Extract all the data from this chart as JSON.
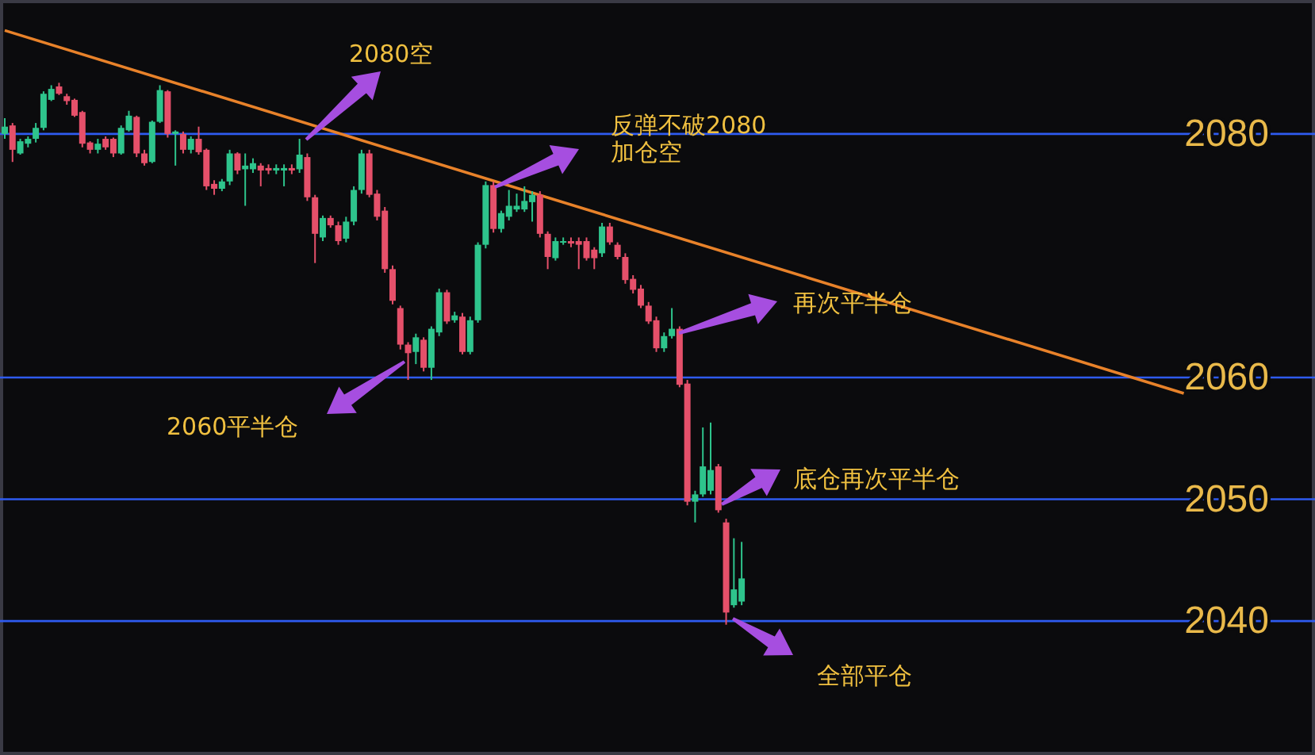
{
  "chart_data": {
    "type": "candlestick",
    "categories": [
      null,
      null,
      null,
      null,
      null,
      null,
      null,
      null,
      null,
      null,
      null,
      null,
      null,
      null,
      null,
      null,
      null,
      null,
      null,
      null,
      null,
      null,
      null,
      null,
      null,
      null,
      null,
      null,
      null,
      null,
      null,
      null,
      null,
      null,
      null,
      null,
      null,
      null,
      null,
      null,
      null,
      null,
      null,
      null,
      null,
      null,
      null,
      null,
      null,
      null,
      null,
      null,
      null,
      null,
      null,
      null,
      null,
      null,
      null,
      null,
      null,
      null,
      null,
      null,
      null,
      null,
      null,
      null,
      null,
      null,
      null,
      null,
      null,
      null,
      null,
      null,
      null,
      null,
      null,
      null,
      null,
      null,
      null,
      null,
      null,
      null,
      null,
      null,
      null,
      null,
      null,
      null,
      null,
      null,
      null,
      null,
      null,
      null,
      null,
      null,
      null,
      null,
      null,
      null,
      null,
      null,
      null,
      null,
      null,
      null,
      null,
      null,
      null,
      null,
      null,
      null,
      null,
      null,
      null,
      null,
      null,
      null,
      null,
      null,
      null,
      null,
      null,
      null,
      null,
      null,
      null,
      null,
      null,
      null,
      null,
      null,
      null,
      null,
      null,
      null,
      null,
      null,
      null,
      null,
      null,
      null,
      null,
      null,
      null,
      null,
      null,
      null,
      null
    ],
    "ohlc": [
      [
        2080.0,
        2081.3,
        2079.6,
        2080.6
      ],
      [
        2080.7,
        2080.9,
        2077.7,
        2078.7
      ],
      [
        2078.4,
        2079.6,
        2078.3,
        2079.4
      ],
      [
        2079.2,
        2079.8,
        2078.9,
        2079.6
      ],
      [
        2079.6,
        2080.9,
        2079.3,
        2080.5
      ],
      [
        2080.5,
        2083.5,
        2080.3,
        2083.3
      ],
      [
        2082.8,
        2084.0,
        2082.7,
        2083.7
      ],
      [
        2083.9,
        2084.2,
        2083.2,
        2083.3
      ],
      [
        2083.1,
        2083.3,
        2082.4,
        2082.7
      ],
      [
        2082.8,
        2082.9,
        2081.4,
        2081.5
      ],
      [
        2081.8,
        2081.9,
        2078.9,
        2079.2
      ],
      [
        2079.3,
        2079.4,
        2078.4,
        2078.7
      ],
      [
        2078.7,
        2079.6,
        2078.4,
        2079.2
      ],
      [
        2079.6,
        2079.8,
        2078.7,
        2078.9
      ],
      [
        2079.6,
        2079.7,
        2078.1,
        2078.4
      ],
      [
        2078.4,
        2080.7,
        2078.3,
        2080.5
      ],
      [
        2080.3,
        2081.9,
        2080.2,
        2081.5
      ],
      [
        2081.4,
        2081.5,
        2078.1,
        2078.4
      ],
      [
        2078.4,
        2078.7,
        2077.4,
        2077.6
      ],
      [
        2077.7,
        2081.1,
        2077.6,
        2081.0
      ],
      [
        2081.0,
        2084.0,
        2080.9,
        2083.6
      ],
      [
        2083.5,
        2083.6,
        2079.7,
        2080.0
      ],
      [
        2080.0,
        2080.3,
        2077.4,
        2080.2
      ],
      [
        2080.0,
        2080.2,
        2078.4,
        2078.7
      ],
      [
        2078.7,
        2079.8,
        2078.4,
        2079.6
      ],
      [
        2079.6,
        2080.6,
        2078.3,
        2078.5
      ],
      [
        2078.7,
        2078.8,
        2075.4,
        2075.7
      ],
      [
        2075.9,
        2076.2,
        2075.0,
        2075.5
      ],
      [
        2075.5,
        2076.3,
        2075.3,
        2076.1
      ],
      [
        2076.1,
        2078.7,
        2075.8,
        2078.4
      ],
      [
        2078.4,
        2078.5,
        2076.7,
        2077.0
      ],
      [
        2077.1,
        2078.4,
        2074.1,
        2077.4
      ],
      [
        2077.1,
        2078.0,
        2076.8,
        2077.6
      ],
      [
        2077.4,
        2077.6,
        2075.7,
        2077.0
      ],
      [
        2077.2,
        2077.5,
        2076.7,
        2077.0
      ],
      [
        2077.0,
        2077.5,
        2076.7,
        2077.2
      ],
      [
        2077.0,
        2077.5,
        2075.7,
        2077.2
      ],
      [
        2077.2,
        2077.5,
        2076.7,
        2077.0
      ],
      [
        2077.1,
        2079.6,
        2076.8,
        2078.3
      ],
      [
        2078.1,
        2078.4,
        2074.5,
        2074.8
      ],
      [
        2074.8,
        2075.0,
        2069.4,
        2071.8
      ],
      [
        2071.5,
        2073.3,
        2071.2,
        2073.1
      ],
      [
        2073.1,
        2073.3,
        2072.3,
        2072.5
      ],
      [
        2072.5,
        2072.8,
        2070.9,
        2071.2
      ],
      [
        2071.4,
        2073.2,
        2071.1,
        2072.8
      ],
      [
        2072.8,
        2075.7,
        2072.5,
        2075.4
      ],
      [
        2075.4,
        2078.7,
        2075.1,
        2078.4
      ],
      [
        2078.4,
        2078.7,
        2074.8,
        2075.0
      ],
      [
        2075.1,
        2075.4,
        2072.9,
        2073.2
      ],
      [
        2073.7,
        2074.0,
        2068.6,
        2068.9
      ],
      [
        2068.9,
        2069.2,
        2066.0,
        2066.3
      ],
      [
        2065.7,
        2065.9,
        2062.3,
        2062.7
      ],
      [
        2062.7,
        2062.9,
        2059.8,
        2062.0
      ],
      [
        2062.1,
        2063.6,
        2061.1,
        2063.3
      ],
      [
        2063.1,
        2063.3,
        2060.5,
        2060.8
      ],
      [
        2060.8,
        2064.2,
        2059.8,
        2064.0
      ],
      [
        2063.7,
        2067.3,
        2063.4,
        2067.0
      ],
      [
        2067.0,
        2067.2,
        2064.4,
        2064.6
      ],
      [
        2064.7,
        2065.4,
        2064.5,
        2065.1
      ],
      [
        2065.0,
        2065.3,
        2061.9,
        2062.1
      ],
      [
        2062.1,
        2065.0,
        2061.9,
        2064.7
      ],
      [
        2064.7,
        2071.1,
        2064.5,
        2070.9
      ],
      [
        2070.9,
        2076.1,
        2070.6,
        2075.8
      ],
      [
        2075.8,
        2076.1,
        2071.9,
        2072.2
      ],
      [
        2072.2,
        2073.7,
        2071.9,
        2073.5
      ],
      [
        2073.2,
        2075.4,
        2072.9,
        2074.1
      ],
      [
        2073.8,
        2075.1,
        2073.6,
        2074.1
      ],
      [
        2073.8,
        2075.7,
        2073.6,
        2074.5
      ],
      [
        2074.4,
        2075.3,
        2072.8,
        2075.0
      ],
      [
        2075.0,
        2075.3,
        2071.5,
        2071.8
      ],
      [
        2071.8,
        2072.0,
        2068.9,
        2069.9
      ],
      [
        2069.8,
        2071.5,
        2069.6,
        2071.2
      ],
      [
        2071.1,
        2071.5,
        2070.9,
        2071.2
      ],
      [
        2071.2,
        2071.5,
        2070.7,
        2071.0
      ],
      [
        2071.2,
        2071.5,
        2068.9,
        2070.9
      ],
      [
        2071.2,
        2071.5,
        2069.6,
        2069.8
      ],
      [
        2070.5,
        2070.7,
        2068.9,
        2069.8
      ],
      [
        2070.2,
        2072.7,
        2069.9,
        2072.4
      ],
      [
        2072.4,
        2072.7,
        2070.9,
        2071.1
      ],
      [
        2070.9,
        2071.1,
        2069.7,
        2069.9
      ],
      [
        2069.9,
        2070.2,
        2067.7,
        2068.0
      ],
      [
        2068.1,
        2068.4,
        2066.9,
        2067.2
      ],
      [
        2067.3,
        2067.6,
        2065.7,
        2065.9
      ],
      [
        2065.9,
        2066.2,
        2064.4,
        2064.6
      ],
      [
        2064.7,
        2065.0,
        2062.1,
        2062.4
      ],
      [
        2062.4,
        2063.7,
        2062.1,
        2063.4
      ],
      [
        2063.4,
        2065.7,
        2063.2,
        2064.0
      ],
      [
        2064.0,
        2064.2,
        2059.2,
        2059.4
      ],
      [
        2059.5,
        2059.8,
        2049.5,
        2049.8
      ],
      [
        2049.8,
        2050.7,
        2048.1,
        2050.4
      ],
      [
        2050.4,
        2055.9,
        2050.2,
        2052.7
      ],
      [
        2050.7,
        2056.3,
        2050.4,
        2052.4
      ],
      [
        2052.7,
        2052.9,
        2048.9,
        2049.1
      ],
      [
        2048.1,
        2048.4,
        2039.7,
        2040.7
      ],
      [
        2041.3,
        2046.8,
        2041.1,
        2042.6
      ],
      [
        2041.6,
        2046.5,
        2041.3,
        2043.5
      ],
      null,
      null,
      null,
      null,
      null,
      null,
      null,
      null,
      null,
      null,
      null,
      null,
      null,
      null,
      null,
      null,
      null,
      null,
      null,
      null,
      null,
      null,
      null,
      null,
      null,
      null,
      null,
      null,
      null,
      null,
      null,
      null,
      null,
      null,
      null,
      null,
      null,
      null,
      null,
      null,
      null,
      null,
      null,
      null,
      null,
      null,
      null,
      null,
      null,
      null,
      null,
      null,
      null,
      null,
      null,
      null,
      null
    ],
    "colors": [
      "#2ec48c",
      "#e5506a",
      "#2ec48c",
      "#2ec48c",
      "#2ec48c",
      "#2ec48c",
      "#2ec48c",
      "#e5506a",
      "#e5506a",
      "#e5506a",
      "#e5506a",
      "#e5506a",
      "#2ec48c",
      "#e5506a",
      "#e5506a",
      "#2ec48c",
      "#2ec48c",
      "#e5506a",
      "#e5506a",
      "#2ec48c",
      "#2ec48c",
      "#e5506a",
      "#2ec48c",
      "#e5506a",
      "#2ec48c",
      "#e5506a",
      "#e5506a",
      "#e5506a",
      "#2ec48c",
      "#2ec48c",
      "#e5506a",
      "#2ec48c",
      "#2ec48c",
      "#e5506a",
      "#e5506a",
      "#2ec48c",
      "#2ec48c",
      "#e5506a",
      "#2ec48c",
      "#e5506a",
      "#e5506a",
      "#2ec48c",
      "#e5506a",
      "#e5506a",
      "#2ec48c",
      "#2ec48c",
      "#2ec48c",
      "#e5506a",
      "#e5506a",
      "#e5506a",
      "#e5506a",
      "#e5506a",
      "#e5506a",
      "#2ec48c",
      "#e5506a",
      "#2ec48c",
      "#2ec48c",
      "#e5506a",
      "#2ec48c",
      "#e5506a",
      "#2ec48c",
      "#2ec48c",
      "#2ec48c",
      "#e5506a",
      "#2ec48c",
      "#2ec48c",
      "#2ec48c",
      "#2ec48c",
      "#2ec48c",
      "#e5506a",
      "#e5506a",
      "#2ec48c",
      "#2ec48c",
      "#e5506a",
      "#e5506a",
      "#e5506a",
      "#e5506a",
      "#2ec48c",
      "#e5506a",
      "#e5506a",
      "#e5506a",
      "#e5506a",
      "#e5506a",
      "#e5506a",
      "#e5506a",
      "#2ec48c",
      "#2ec48c",
      "#e5506a",
      "#e5506a",
      "#2ec48c",
      "#2ec48c",
      "#2ec48c",
      "#e5506a",
      "#e5506a",
      "#2ec48c",
      "#2ec48c",
      null,
      null,
      null,
      null,
      null,
      null,
      null,
      null,
      null,
      null,
      null,
      null,
      null,
      null,
      null,
      null,
      null,
      null,
      null,
      null,
      null,
      null,
      null,
      null,
      null,
      null,
      null,
      null,
      null,
      null,
      null,
      null,
      null,
      null,
      null,
      null,
      null,
      null,
      null,
      null,
      null,
      null,
      null,
      null,
      null,
      null,
      null,
      null,
      null,
      null,
      null,
      null,
      null,
      null,
      null,
      null,
      null
    ],
    "series": [
      {
        "type": "line",
        "color": "#e8822a",
        "values": [
          2088.5,
          null,
          null,
          null,
          null,
          null,
          null,
          null,
          null,
          null,
          null,
          null,
          null,
          null,
          null,
          null,
          null,
          null,
          null,
          null,
          null,
          null,
          null,
          null,
          null,
          null,
          null,
          null,
          null,
          null,
          null,
          null,
          null,
          null,
          null,
          null,
          null,
          null,
          null,
          null,
          null,
          null,
          null,
          null,
          null,
          null,
          null,
          null,
          null,
          null,
          null,
          null,
          null,
          null,
          null,
          null,
          null,
          null,
          null,
          null,
          null,
          null,
          null,
          null,
          null,
          null,
          null,
          null,
          null,
          null,
          null,
          null,
          null,
          null,
          null,
          null,
          null,
          null,
          null,
          null,
          null,
          null,
          null,
          null,
          null,
          null,
          null,
          null,
          null,
          null,
          null,
          null,
          null,
          null,
          null,
          null,
          null,
          null,
          null,
          null,
          null,
          null,
          null,
          null,
          null,
          null,
          null,
          null,
          null,
          null,
          null,
          null,
          null,
          null,
          null,
          null,
          null,
          null,
          null,
          null,
          null,
          null,
          null,
          null,
          null,
          null,
          null,
          null,
          null,
          null,
          null,
          null,
          null,
          null,
          null,
          null,
          null,
          null,
          null,
          null,
          null,
          null,
          null,
          null,
          null,
          null,
          null,
          null,
          null,
          null,
          null,
          null,
          2058.7
        ]
      }
    ],
    "ylim": [
      2029,
      2091
    ],
    "yticks": [
      2040,
      2050,
      2060,
      2080
    ],
    "grid": "y",
    "annotations": [
      "2080空",
      "反弹不破2080\n加仓空",
      "再次平半仓",
      "2060平半仓",
      "底仓再次平半仓",
      "全部平仓"
    ]
  }
}
